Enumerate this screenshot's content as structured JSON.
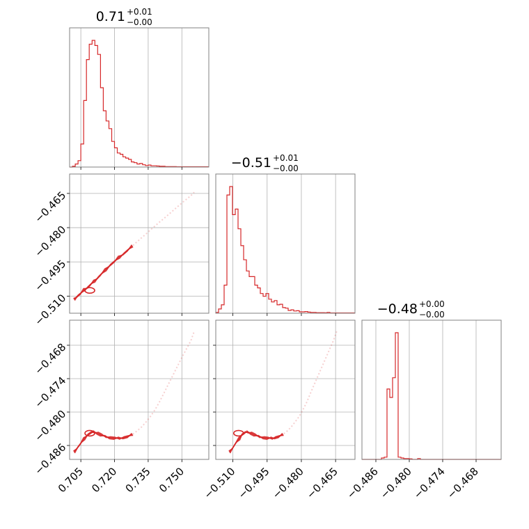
{
  "chart_data": {
    "type": "corner",
    "color": "#d62728",
    "panel_titles": [
      {
        "value": "0.71",
        "plus": "+0.01",
        "minus": "−0.00"
      },
      {
        "value": "−0.51",
        "plus": "+0.01",
        "minus": "−0.00"
      },
      {
        "value": "−0.48",
        "plus": "+0.00",
        "minus": "−0.00"
      }
    ],
    "params": [
      {
        "range": [
          0.7,
          0.762
        ],
        "ticks": [
          0.705,
          0.72,
          0.735,
          0.75
        ],
        "tick_labels": [
          "0.705",
          "0.720",
          "0.735",
          "0.750"
        ]
      },
      {
        "range": [
          -0.5175,
          -0.4565
        ],
        "ticks": [
          -0.51,
          -0.495,
          -0.48,
          -0.465
        ],
        "tick_labels": [
          "−0.510",
          "−0.495",
          "−0.480",
          "−0.465"
        ]
      },
      {
        "range": [
          -0.4885,
          -0.4635
        ],
        "ticks": [
          -0.486,
          -0.48,
          -0.474,
          -0.468
        ],
        "tick_labels": [
          "−0.486",
          "−0.480",
          "−0.474",
          "−0.468"
        ]
      }
    ],
    "histograms": [
      {
        "name": "param_0",
        "bin_start": 0.7,
        "bin_width": 0.00125,
        "counts": [
          0,
          0.3,
          1.2,
          2.5,
          9.0,
          26.0,
          42.0,
          48.0,
          49.5,
          47.5,
          44.0,
          31.0,
          22.0,
          18.0,
          15.0,
          10.0,
          7.5,
          5.5,
          5.0,
          4.0,
          3.5,
          3.0,
          2.0,
          1.7,
          1.2,
          1.4,
          0.9,
          0.6,
          0.8,
          0.5,
          0.5,
          0.4,
          0.3,
          0.3,
          0.2,
          0.2,
          0.15,
          0.15,
          0.1,
          0.1,
          0.1,
          0.1,
          0.1,
          0.1,
          0.1,
          0.1,
          0.1,
          0.1,
          0.1,
          0.1
        ]
      },
      {
        "name": "param_1",
        "bin_start": -0.5175,
        "bin_width": 0.00122,
        "counts": [
          0.3,
          1.5,
          3.0,
          10.0,
          42.0,
          45.0,
          35.0,
          37.0,
          30.0,
          24.0,
          19.0,
          15.0,
          13.0,
          13.0,
          10.0,
          9.0,
          7.0,
          6.0,
          7.0,
          5.0,
          4.0,
          4.5,
          3.0,
          3.2,
          2.0,
          1.8,
          1.0,
          1.2,
          0.8,
          0.9,
          0.5,
          0.5,
          0.6,
          0.4,
          0.3,
          0.3,
          0.2,
          0.2,
          0.2,
          0.15,
          0.3,
          0.1,
          0.1,
          0.1,
          0.1,
          0.1,
          0.1,
          0.1,
          0.1,
          0.1
        ]
      },
      {
        "name": "param_2",
        "bin_start": -0.4885,
        "bin_width": 0.0005,
        "counts": [
          0,
          0,
          0,
          0,
          0,
          0,
          0,
          0.5,
          0.8,
          25.0,
          22.0,
          29.0,
          45.0,
          0.8,
          0.5,
          0.3,
          0.3,
          0.2,
          0,
          0,
          0.3,
          0,
          0,
          0,
          0,
          0,
          0,
          0,
          0,
          0,
          0,
          0,
          0,
          0,
          0,
          0,
          0,
          0,
          0,
          0,
          0,
          0,
          0,
          0,
          0,
          0,
          0,
          0,
          0,
          0
        ]
      }
    ],
    "sample_path": [
      [
        0.702,
        -0.5115,
        -0.4872
      ],
      [
        0.7035,
        -0.51,
        -0.4864
      ],
      [
        0.705,
        -0.5088,
        -0.4856
      ],
      [
        0.7065,
        -0.5072,
        -0.4848
      ],
      [
        0.708,
        -0.5062,
        -0.4841
      ],
      [
        0.7095,
        -0.5048,
        -0.4837
      ],
      [
        0.711,
        -0.5035,
        -0.4836
      ],
      [
        0.7125,
        -0.502,
        -0.4838
      ],
      [
        0.714,
        -0.5005,
        -0.4841
      ],
      [
        0.716,
        -0.4985,
        -0.4844
      ],
      [
        0.718,
        -0.4965,
        -0.4846
      ],
      [
        0.72,
        -0.4948,
        -0.4847
      ],
      [
        0.722,
        -0.493,
        -0.4847
      ],
      [
        0.724,
        -0.4915,
        -0.4846
      ],
      [
        0.726,
        -0.4898,
        -0.4844
      ],
      [
        0.728,
        -0.488,
        -0.484
      ],
      [
        0.73,
        -0.4862,
        -0.4834
      ],
      [
        0.732,
        -0.4845,
        -0.4827
      ],
      [
        0.734,
        -0.4828,
        -0.4818
      ],
      [
        0.736,
        -0.481,
        -0.4808
      ],
      [
        0.738,
        -0.4793,
        -0.4796
      ],
      [
        0.74,
        -0.4776,
        -0.4782
      ],
      [
        0.742,
        -0.476,
        -0.4766
      ],
      [
        0.744,
        -0.4743,
        -0.475
      ],
      [
        0.746,
        -0.4726,
        -0.4734
      ],
      [
        0.748,
        -0.4709,
        -0.4718
      ],
      [
        0.75,
        -0.4692,
        -0.4702
      ],
      [
        0.752,
        -0.4676,
        -0.4687
      ],
      [
        0.754,
        -0.466,
        -0.4672
      ],
      [
        0.7555,
        -0.4645,
        -0.4655
      ]
    ],
    "density_peak": [
      0.709,
      -0.5075,
      -0.4838
    ]
  }
}
